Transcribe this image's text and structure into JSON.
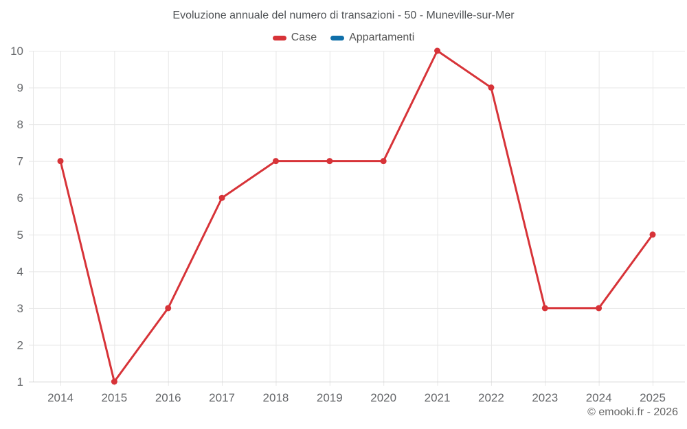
{
  "header": {
    "title": "Evoluzione annuale del numero di transazioni - 50 - Muneville-sur-Mer"
  },
  "legend": {
    "items": [
      {
        "label": "Case",
        "color": "#d73338"
      },
      {
        "label": "Appartamenti",
        "color": "#0f6fa9"
      }
    ]
  },
  "footer": {
    "credit": "© emooki.fr - 2026"
  },
  "chart_data": {
    "type": "line",
    "title": "Evoluzione annuale del numero di transazioni - 50 - Muneville-sur-Mer",
    "x": [
      "2014",
      "2015",
      "2016",
      "2017",
      "2018",
      "2019",
      "2020",
      "2021",
      "2022",
      "2023",
      "2024",
      "2025"
    ],
    "series": [
      {
        "name": "Case",
        "color": "#d73338",
        "values": [
          7,
          1,
          3,
          6,
          7,
          7,
          7,
          10,
          9,
          3,
          3,
          5
        ]
      },
      {
        "name": "Appartamenti",
        "color": "#0f6fa9",
        "values": []
      }
    ],
    "ylim": [
      1,
      10
    ],
    "yticks": [
      1,
      2,
      3,
      4,
      5,
      6,
      7,
      8,
      9,
      10
    ],
    "xlabel": "",
    "ylabel": "",
    "grid": true,
    "legend_position": "top",
    "colors": {
      "grid": "#e7e7e7",
      "axis": "#cccccc",
      "tick_text": "#66686b"
    }
  }
}
